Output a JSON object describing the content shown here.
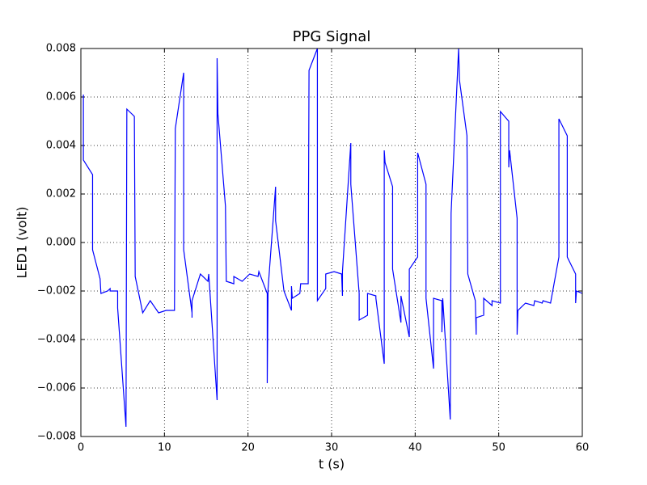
{
  "chart_data": {
    "type": "line",
    "title": "PPG Signal",
    "x_label": "t (s)",
    "y_label": "LED1 (volt)",
    "x": [
      0.3,
      0.3,
      1.4,
      1.4,
      2.3,
      2.4,
      3.2,
      3.5,
      3.5,
      4.4,
      4.4,
      5.4,
      5.5,
      6.4,
      6.5,
      7.4,
      8.3,
      9.3,
      10.2,
      11.2,
      11.3,
      12.3,
      12.3,
      13.3,
      13.3,
      13.3,
      14.3,
      15.2,
      15.3,
      16.3,
      16.3,
      16.4,
      17.3,
      17.4,
      18.3,
      18.3,
      19.3,
      20.2,
      21.2,
      21.3,
      22.3,
      22.3,
      22.4,
      23.3,
      23.3,
      24.3,
      25.2,
      25.2,
      25.3,
      26.2,
      26.3,
      27.2,
      27.3,
      28.3,
      28.3,
      29.3,
      29.3,
      30.3,
      31.2,
      31.3,
      31.3,
      32.3,
      32.3,
      33.3,
      33.3,
      34.3,
      34.3,
      35.3,
      35.3,
      36.3,
      36.3,
      36.4,
      37.3,
      37.3,
      38.3,
      38.3,
      39.3,
      39.3,
      40.3,
      40.3,
      41.3,
      41.3,
      42.2,
      42.2,
      43.2,
      43.2,
      43.3,
      44.2,
      44.3,
      45.2,
      45.3,
      46.2,
      46.3,
      47.2,
      47.3,
      47.3,
      48.2,
      48.2,
      49.2,
      49.2,
      50.2,
      50.2,
      51.2,
      51.2,
      51.3,
      52.2,
      52.2,
      52.3,
      53.2,
      54.2,
      54.3,
      55.2,
      55.3,
      56.2,
      57.2,
      57.2,
      58.2,
      58.2,
      59.2,
      59.2,
      59.3,
      60
    ],
    "series": [
      {
        "name": "LED1",
        "color": "#0000ff",
        "values": [
          0.0061,
          0.0034,
          0.0028,
          -0.0003,
          -0.0015,
          -0.0021,
          -0.002,
          -0.0019,
          -0.002,
          -0.002,
          -0.0027,
          -0.0076,
          0.0055,
          0.0052,
          -0.0014,
          -0.0029,
          -0.0024,
          -0.0029,
          -0.0028,
          -0.0028,
          0.0047,
          0.007,
          -0.0003,
          -0.0029,
          -0.0031,
          -0.0024,
          -0.0013,
          -0.0016,
          -0.0013,
          -0.0065,
          0.0076,
          0.0053,
          0.0015,
          -0.0016,
          -0.0017,
          -0.0014,
          -0.0016,
          -0.0013,
          -0.0014,
          -0.0012,
          -0.0021,
          -0.0058,
          -0.0019,
          0.0023,
          0.0009,
          -0.002,
          -0.0028,
          -0.0018,
          -0.0023,
          -0.0021,
          -0.0017,
          -0.0017,
          0.0071,
          0.008,
          -0.0024,
          -0.0019,
          -0.0013,
          -0.0012,
          -0.0013,
          -0.0022,
          -0.0012,
          0.0041,
          0.0024,
          -0.0021,
          -0.0032,
          -0.003,
          -0.0021,
          -0.0022,
          -0.0023,
          -0.005,
          0.0038,
          0.0033,
          0.0023,
          -0.0011,
          -0.0033,
          -0.0022,
          -0.0039,
          -0.0011,
          -0.0006,
          0.0037,
          0.0024,
          -0.0023,
          -0.0052,
          -0.0023,
          -0.0024,
          -0.0037,
          -0.0023,
          -0.0073,
          0.0012,
          0.008,
          0.0067,
          0.0044,
          -0.0013,
          -0.0024,
          -0.0038,
          -0.0031,
          -0.003,
          -0.0023,
          -0.0026,
          -0.0024,
          -0.0025,
          0.0054,
          0.005,
          0.0031,
          0.0038,
          0.001,
          -0.0038,
          -0.0028,
          -0.0025,
          -0.0026,
          -0.0024,
          -0.0025,
          -0.0024,
          -0.0025,
          -0.0006,
          0.0051,
          0.0044,
          -0.0006,
          -0.0013,
          -0.0025,
          -0.002,
          -0.0021
        ]
      }
    ],
    "xlim": [
      0,
      60
    ],
    "xticks": [
      0,
      10,
      20,
      30,
      40,
      50,
      60
    ],
    "ylim": [
      -0.008,
      0.008
    ],
    "yticks": [
      {
        "value": -0.008,
        "label": "−0.008"
      },
      {
        "value": -0.006,
        "label": "−0.006"
      },
      {
        "value": -0.004,
        "label": "−0.004"
      },
      {
        "value": -0.002,
        "label": "−0.002"
      },
      {
        "value": 0,
        "label": "0.000"
      },
      {
        "value": 0.002,
        "label": "0.002"
      },
      {
        "value": 0.004,
        "label": "0.004"
      },
      {
        "value": 0.006,
        "label": "0.006"
      },
      {
        "value": 0.008,
        "label": "0.008"
      }
    ],
    "grid": true
  }
}
